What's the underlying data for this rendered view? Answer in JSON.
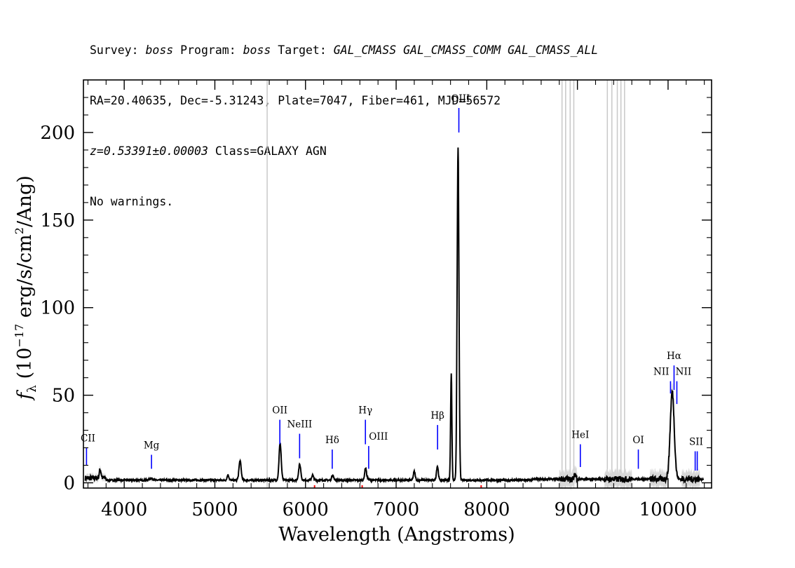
{
  "header": {
    "line1": {
      "survey_label": "Survey: ",
      "survey": "boss",
      "program_label": " Program: ",
      "program": "boss",
      "target_label": " Target: ",
      "target": "GAL_CMASS GAL_CMASS_COMM GAL_CMASS_ALL"
    },
    "line2": "RA=20.40635, Dec=-5.31243, Plate=7047, Fiber=461, MJD=56572",
    "line3": {
      "redshift": "z=0.53391±0.00003",
      "class": " Class=GALAXY AGN"
    },
    "line4": "No warnings."
  },
  "chart_data": {
    "type": "line",
    "xlabel": "Wavelength (Angstroms)",
    "ylabel_parts": {
      "f": "f",
      "lambda": "λ",
      "unit_open": " (10",
      "exp": "−17",
      "unit_mid": " erg/s/cm",
      "sq": "2",
      "unit_close": "/Ang)"
    },
    "xlim": [
      3550,
      10480
    ],
    "ylim": [
      -3,
      230
    ],
    "xticks": [
      4000,
      5000,
      6000,
      7000,
      8000,
      9000,
      10000
    ],
    "xtick_labels": [
      "4000",
      "5000",
      "6000",
      "7000",
      "8000",
      "9000",
      "10000"
    ],
    "yticks": [
      0,
      50,
      100,
      150,
      200
    ],
    "ytick_labels": [
      "0",
      "50",
      "100",
      "150",
      "200"
    ],
    "spectrum": {
      "continuum": 1.5,
      "peaks": [
        [
          3735,
          5,
          10
        ],
        [
          4300,
          1,
          20
        ],
        [
          5145,
          3,
          10
        ],
        [
          5278,
          11,
          12
        ],
        [
          5720,
          21,
          12
        ],
        [
          5936,
          9,
          12
        ],
        [
          6078,
          3,
          10
        ],
        [
          6300,
          3,
          10
        ],
        [
          6663,
          7,
          10
        ],
        [
          6692,
          1,
          8
        ],
        [
          7200,
          5,
          10
        ],
        [
          7455,
          8,
          10
        ],
        [
          7608,
          61,
          7
        ],
        [
          7683,
          190,
          10
        ],
        [
          8977,
          3,
          10
        ],
        [
          10046,
          50,
          22
        ]
      ]
    },
    "sky_lines": [
      5577,
      8830,
      8870,
      8920,
      8960,
      9330,
      9380,
      9440,
      9480,
      9520
    ],
    "noisy_regions": [
      [
        8800,
        9000
      ],
      [
        9300,
        9600
      ],
      [
        9800,
        10100
      ],
      [
        10150,
        10350
      ]
    ],
    "line_labels": [
      {
        "name": "CII",
        "x": 3584,
        "ytop": 20,
        "ybot": 10
      },
      {
        "name": "Mg",
        "x": 4301,
        "ytop": 16,
        "ybot": 8
      },
      {
        "name": "OII",
        "x": 3727,
        "ytop": 36,
        "ybot": 22,
        "xobs": 5717
      },
      {
        "name": "NeIII",
        "x": 5935,
        "ytop": 28,
        "ybot": 14
      },
      {
        "name": "Hδ",
        "x": 6295,
        "ytop": 19,
        "ybot": 8
      },
      {
        "name": "Hγ",
        "x": 6661,
        "ytop": 36,
        "ybot": 22
      },
      {
        "name": "OIII",
        "x": 6697,
        "ytop": 21,
        "ybot": 8
      },
      {
        "name": "Hβ",
        "x": 7457,
        "ytop": 33,
        "ybot": 19
      },
      {
        "name": "OIII",
        "x": 7692,
        "ytop": 214,
        "ybot": 200
      },
      {
        "name": "HeI",
        "x": 9032,
        "ytop": 22,
        "ybot": 9
      },
      {
        "name": "OI",
        "x": 9672,
        "ytop": 19,
        "ybot": 8
      },
      {
        "name": "NII",
        "x": 10027,
        "ytop": 58,
        "ybot": 51
      },
      {
        "name": "Hα",
        "x": 10066,
        "ytop": 67,
        "ybot": 53
      },
      {
        "name": "NII",
        "x": 10097,
        "ytop": 58,
        "ybot": 45
      },
      {
        "name": "SII",
        "x": 10299,
        "ytop": 18,
        "ybot": 7
      },
      {
        "name": "",
        "x": 10322,
        "ytop": 18,
        "ybot": 7
      }
    ],
    "label_text_positions": [
      {
        "text": "CII",
        "x": 3600,
        "y": 22
      },
      {
        "text": "Mg",
        "x": 4301,
        "y": 18
      },
      {
        "text": "OII",
        "x": 5717,
        "y": 38
      },
      {
        "text": "NeIII",
        "x": 5935,
        "y": 30
      },
      {
        "text": "Hδ",
        "x": 6295,
        "y": 21
      },
      {
        "text": "Hγ",
        "x": 6661,
        "y": 38
      },
      {
        "text": "OIII",
        "x": 6805,
        "y": 23
      },
      {
        "text": "Hβ",
        "x": 7457,
        "y": 35
      },
      {
        "text": "OIII",
        "x": 7710,
        "y": 216
      },
      {
        "text": "HeI",
        "x": 9032,
        "y": 24
      },
      {
        "text": "OI",
        "x": 9672,
        "y": 21
      },
      {
        "text": "Hα",
        "x": 10066,
        "y": 69
      },
      {
        "text": "NII",
        "x": 9925,
        "y": 60
      },
      {
        "text": "NII",
        "x": 10170,
        "y": 60
      },
      {
        "text": "SII",
        "x": 10310,
        "y": 20
      }
    ],
    "colors": {
      "spectrum": "#000000",
      "error": "#c8c8c8",
      "lines": "#0000ff",
      "mask": "#ff0000"
    }
  }
}
